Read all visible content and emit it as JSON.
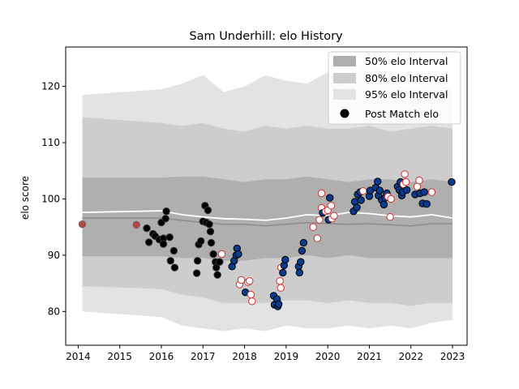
{
  "chart_data": {
    "type": "scatter",
    "title": "Sam Underhill: elo History",
    "xlabel": "",
    "ylabel": "elo score",
    "xlim": [
      2013.7,
      2023.35
    ],
    "ylim": [
      74,
      127
    ],
    "xticks": [
      2014,
      2015,
      2016,
      2017,
      2018,
      2019,
      2020,
      2021,
      2022,
      2023
    ],
    "yticks": [
      80,
      90,
      100,
      110,
      120
    ],
    "grid": false,
    "legend_position": "top-right",
    "legend": {
      "band50": "50% elo Interval",
      "band80": "80% elo Interval",
      "band95": "95% elo Interval",
      "points": "Post Match elo"
    },
    "colors": {
      "band50": "#afafaf",
      "band80": "#cdcdcd",
      "band95": "#e3e3e3",
      "median_line": "#8c8c8c",
      "mean_line": "#ffffff",
      "point_fill_dark": "#000000",
      "point_fill_blue": "#0b3b8c",
      "point_fill_white": "#ffffff",
      "point_edge_red": "#d03030"
    },
    "bands": {
      "x": [
        2014.1,
        2016.0,
        2016.5,
        2017.0,
        2017.5,
        2018.0,
        2018.5,
        2019.0,
        2019.5,
        2020.0,
        2020.5,
        2021.0,
        2021.5,
        2022.0,
        2022.5,
        2023.0
      ],
      "p95_upper": [
        118.5,
        119.5,
        120.5,
        122.0,
        119.0,
        120.0,
        122.0,
        121.0,
        120.5,
        122.5,
        120.0,
        125.0,
        121.0,
        119.5,
        120.5,
        120.0
      ],
      "p80_upper": [
        114.5,
        113.5,
        113.0,
        113.5,
        112.5,
        112.0,
        113.0,
        112.5,
        113.0,
        112.5,
        112.5,
        113.0,
        112.0,
        112.5,
        113.0,
        112.5
      ],
      "p50_upper": [
        103.8,
        103.8,
        104.0,
        104.0,
        103.5,
        103.0,
        103.5,
        103.5,
        104.0,
        103.5,
        103.0,
        103.5,
        103.5,
        103.0,
        103.5,
        103.0
      ],
      "p50_lower": [
        89.8,
        89.8,
        89.5,
        89.5,
        89.0,
        89.0,
        89.5,
        89.5,
        90.0,
        89.5,
        90.0,
        89.5,
        89.5,
        89.5,
        89.5,
        89.5
      ],
      "p80_lower": [
        84.5,
        84.0,
        83.0,
        82.5,
        81.5,
        81.5,
        81.5,
        82.0,
        82.0,
        81.5,
        82.0,
        81.5,
        81.5,
        81.0,
        81.5,
        81.5
      ],
      "p95_lower": [
        80.0,
        79.0,
        77.5,
        77.0,
        76.5,
        77.0,
        76.5,
        77.5,
        77.0,
        77.0,
        77.5,
        77.0,
        77.5,
        77.0,
        78.0,
        78.5
      ],
      "median": [
        96.6,
        96.6,
        96.2,
        95.8,
        95.5,
        95.5,
        95.2,
        95.5,
        95.8,
        95.6,
        95.5,
        95.6,
        95.4,
        95.2,
        95.6,
        95.6
      ],
      "mean": [
        97.6,
        97.9,
        97.2,
        96.8,
        96.5,
        96.4,
        96.2,
        96.6,
        97.2,
        97.0,
        97.6,
        97.4,
        97.0,
        96.8,
        97.2,
        96.6
      ]
    },
    "points": [
      {
        "x": 2014.1,
        "y": 95.5,
        "kind": "red"
      },
      {
        "x": 2015.4,
        "y": 95.4,
        "kind": "red"
      },
      {
        "x": 2015.65,
        "y": 94.8,
        "kind": "dark"
      },
      {
        "x": 2015.7,
        "y": 92.3,
        "kind": "dark"
      },
      {
        "x": 2015.8,
        "y": 93.8,
        "kind": "dark"
      },
      {
        "x": 2015.85,
        "y": 93.4,
        "kind": "dark"
      },
      {
        "x": 2015.95,
        "y": 92.8,
        "kind": "dark"
      },
      {
        "x": 2016.0,
        "y": 95.8,
        "kind": "dark"
      },
      {
        "x": 2016.05,
        "y": 93.0,
        "kind": "dark"
      },
      {
        "x": 2016.05,
        "y": 92.0,
        "kind": "dark"
      },
      {
        "x": 2016.1,
        "y": 96.5,
        "kind": "dark"
      },
      {
        "x": 2016.12,
        "y": 97.8,
        "kind": "dark"
      },
      {
        "x": 2016.2,
        "y": 93.2,
        "kind": "dark"
      },
      {
        "x": 2016.22,
        "y": 89.0,
        "kind": "dark"
      },
      {
        "x": 2016.3,
        "y": 90.8,
        "kind": "dark"
      },
      {
        "x": 2016.32,
        "y": 87.8,
        "kind": "dark"
      },
      {
        "x": 2016.85,
        "y": 86.8,
        "kind": "dark"
      },
      {
        "x": 2016.87,
        "y": 89.0,
        "kind": "dark"
      },
      {
        "x": 2016.9,
        "y": 91.9,
        "kind": "dark"
      },
      {
        "x": 2016.95,
        "y": 92.5,
        "kind": "dark"
      },
      {
        "x": 2017.0,
        "y": 96.0,
        "kind": "dark"
      },
      {
        "x": 2017.05,
        "y": 98.8,
        "kind": "dark"
      },
      {
        "x": 2017.08,
        "y": 95.8,
        "kind": "dark"
      },
      {
        "x": 2017.12,
        "y": 98.0,
        "kind": "dark"
      },
      {
        "x": 2017.15,
        "y": 95.5,
        "kind": "dark"
      },
      {
        "x": 2017.18,
        "y": 94.2,
        "kind": "dark"
      },
      {
        "x": 2017.2,
        "y": 92.2,
        "kind": "dark"
      },
      {
        "x": 2017.25,
        "y": 90.2,
        "kind": "dark"
      },
      {
        "x": 2017.3,
        "y": 88.8,
        "kind": "dark"
      },
      {
        "x": 2017.32,
        "y": 87.8,
        "kind": "dark"
      },
      {
        "x": 2017.35,
        "y": 86.5,
        "kind": "dark"
      },
      {
        "x": 2017.4,
        "y": 88.8,
        "kind": "dark"
      },
      {
        "x": 2017.45,
        "y": 90.2,
        "kind": "white"
      },
      {
        "x": 2017.7,
        "y": 88.0,
        "kind": "blue"
      },
      {
        "x": 2017.75,
        "y": 89.0,
        "kind": "blue"
      },
      {
        "x": 2017.8,
        "y": 90.0,
        "kind": "blue"
      },
      {
        "x": 2017.82,
        "y": 91.2,
        "kind": "blue"
      },
      {
        "x": 2017.85,
        "y": 90.2,
        "kind": "blue"
      },
      {
        "x": 2017.88,
        "y": 84.8,
        "kind": "white"
      },
      {
        "x": 2017.92,
        "y": 85.6,
        "kind": "white"
      },
      {
        "x": 2018.02,
        "y": 83.4,
        "kind": "blue"
      },
      {
        "x": 2018.08,
        "y": 85.2,
        "kind": "white"
      },
      {
        "x": 2018.12,
        "y": 85.4,
        "kind": "white"
      },
      {
        "x": 2018.15,
        "y": 83.0,
        "kind": "white"
      },
      {
        "x": 2018.18,
        "y": 81.8,
        "kind": "white"
      },
      {
        "x": 2018.7,
        "y": 82.8,
        "kind": "blue"
      },
      {
        "x": 2018.72,
        "y": 81.2,
        "kind": "blue"
      },
      {
        "x": 2018.78,
        "y": 82.2,
        "kind": "blue"
      },
      {
        "x": 2018.8,
        "y": 80.9,
        "kind": "blue"
      },
      {
        "x": 2018.82,
        "y": 81.3,
        "kind": "blue"
      },
      {
        "x": 2018.85,
        "y": 85.4,
        "kind": "white"
      },
      {
        "x": 2018.87,
        "y": 84.2,
        "kind": "white"
      },
      {
        "x": 2018.88,
        "y": 87.8,
        "kind": "white"
      },
      {
        "x": 2018.92,
        "y": 86.9,
        "kind": "blue"
      },
      {
        "x": 2018.95,
        "y": 88.2,
        "kind": "blue"
      },
      {
        "x": 2018.98,
        "y": 89.2,
        "kind": "blue"
      },
      {
        "x": 2019.3,
        "y": 88.0,
        "kind": "blue"
      },
      {
        "x": 2019.32,
        "y": 86.9,
        "kind": "blue"
      },
      {
        "x": 2019.35,
        "y": 88.8,
        "kind": "blue"
      },
      {
        "x": 2019.38,
        "y": 90.8,
        "kind": "blue"
      },
      {
        "x": 2019.42,
        "y": 92.2,
        "kind": "blue"
      },
      {
        "x": 2019.65,
        "y": 95.0,
        "kind": "white"
      },
      {
        "x": 2019.75,
        "y": 93.0,
        "kind": "white"
      },
      {
        "x": 2019.8,
        "y": 96.3,
        "kind": "white"
      },
      {
        "x": 2019.85,
        "y": 101.0,
        "kind": "white"
      },
      {
        "x": 2019.85,
        "y": 98.4,
        "kind": "white"
      },
      {
        "x": 2019.88,
        "y": 97.5,
        "kind": "blue"
      },
      {
        "x": 2019.95,
        "y": 97.8,
        "kind": "white"
      },
      {
        "x": 2020.0,
        "y": 98.0,
        "kind": "white"
      },
      {
        "x": 2020.02,
        "y": 96.3,
        "kind": "blue"
      },
      {
        "x": 2020.05,
        "y": 100.2,
        "kind": "blue"
      },
      {
        "x": 2020.08,
        "y": 98.8,
        "kind": "white"
      },
      {
        "x": 2020.1,
        "y": 96.5,
        "kind": "white"
      },
      {
        "x": 2020.15,
        "y": 97.0,
        "kind": "white"
      },
      {
        "x": 2020.62,
        "y": 97.8,
        "kind": "blue"
      },
      {
        "x": 2020.65,
        "y": 99.5,
        "kind": "blue"
      },
      {
        "x": 2020.7,
        "y": 98.5,
        "kind": "blue"
      },
      {
        "x": 2020.72,
        "y": 100.8,
        "kind": "blue"
      },
      {
        "x": 2020.78,
        "y": 101.2,
        "kind": "blue"
      },
      {
        "x": 2020.8,
        "y": 99.8,
        "kind": "blue"
      },
      {
        "x": 2020.85,
        "y": 101.4,
        "kind": "white"
      },
      {
        "x": 2021.0,
        "y": 100.5,
        "kind": "blue"
      },
      {
        "x": 2021.02,
        "y": 101.5,
        "kind": "blue"
      },
      {
        "x": 2021.15,
        "y": 102.0,
        "kind": "blue"
      },
      {
        "x": 2021.2,
        "y": 103.1,
        "kind": "blue"
      },
      {
        "x": 2021.22,
        "y": 100.6,
        "kind": "blue"
      },
      {
        "x": 2021.25,
        "y": 101.5,
        "kind": "blue"
      },
      {
        "x": 2021.3,
        "y": 99.8,
        "kind": "blue"
      },
      {
        "x": 2021.35,
        "y": 99.0,
        "kind": "blue"
      },
      {
        "x": 2021.38,
        "y": 100.2,
        "kind": "blue"
      },
      {
        "x": 2021.42,
        "y": 101.0,
        "kind": "blue"
      },
      {
        "x": 2021.45,
        "y": 100.4,
        "kind": "white"
      },
      {
        "x": 2021.5,
        "y": 96.8,
        "kind": "white"
      },
      {
        "x": 2021.52,
        "y": 100.0,
        "kind": "white"
      },
      {
        "x": 2021.68,
        "y": 102.2,
        "kind": "blue"
      },
      {
        "x": 2021.72,
        "y": 101.6,
        "kind": "blue"
      },
      {
        "x": 2021.75,
        "y": 103.0,
        "kind": "blue"
      },
      {
        "x": 2021.78,
        "y": 100.6,
        "kind": "blue"
      },
      {
        "x": 2021.8,
        "y": 101.2,
        "kind": "blue"
      },
      {
        "x": 2021.82,
        "y": 102.6,
        "kind": "white"
      },
      {
        "x": 2021.85,
        "y": 104.4,
        "kind": "white"
      },
      {
        "x": 2021.88,
        "y": 103.0,
        "kind": "white"
      },
      {
        "x": 2021.9,
        "y": 101.6,
        "kind": "blue"
      },
      {
        "x": 2022.1,
        "y": 100.8,
        "kind": "blue"
      },
      {
        "x": 2022.15,
        "y": 102.2,
        "kind": "white"
      },
      {
        "x": 2022.2,
        "y": 103.3,
        "kind": "white"
      },
      {
        "x": 2022.22,
        "y": 101.0,
        "kind": "blue"
      },
      {
        "x": 2022.28,
        "y": 99.2,
        "kind": "blue"
      },
      {
        "x": 2022.32,
        "y": 101.2,
        "kind": "blue"
      },
      {
        "x": 2022.38,
        "y": 99.1,
        "kind": "blue"
      },
      {
        "x": 2022.5,
        "y": 101.2,
        "kind": "white"
      },
      {
        "x": 2022.98,
        "y": 103.0,
        "kind": "blue"
      }
    ]
  }
}
